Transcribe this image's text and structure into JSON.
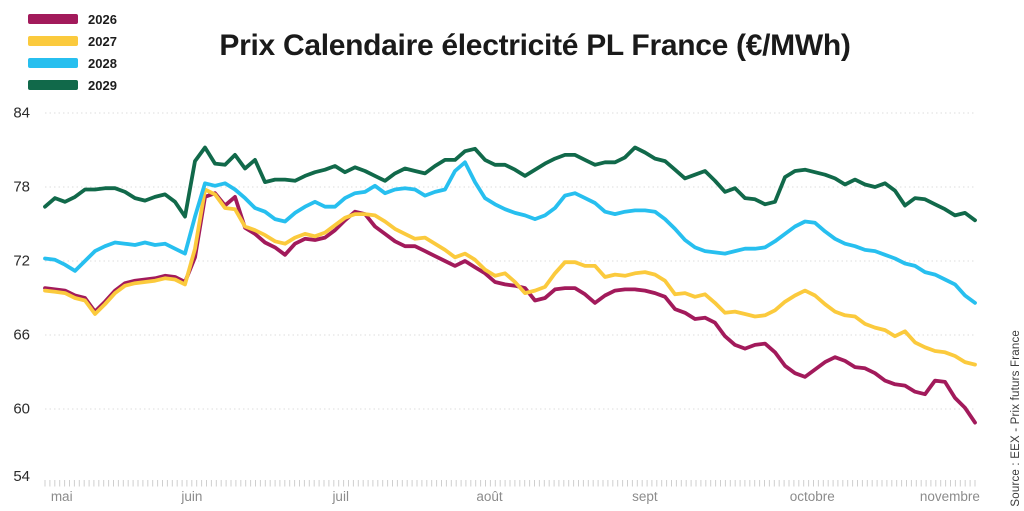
{
  "title": "Prix Calendaire électricité PL France (€/MWh)",
  "source": "Source : EEX - Prix futurs France",
  "legend": [
    {
      "label": "2026",
      "color": "#a21a5b"
    },
    {
      "label": "2027",
      "color": "#fbca3d"
    },
    {
      "label": "2028",
      "color": "#27bfef"
    },
    {
      "label": "2029",
      "color": "#11694a"
    }
  ],
  "colors": {
    "grid": "#dedede",
    "tick": "#cfcfcf",
    "y_label": "#2b2b2b",
    "x_label": "#8c8c8c",
    "title": "#1a1a1a"
  },
  "chart_data": {
    "type": "line",
    "title": "Prix Calendaire électricité PL France (€/MWh)",
    "ylabel": "€/MWh",
    "ylim": [
      54,
      84
    ],
    "y_ticks": [
      84,
      78,
      72,
      66,
      60,
      54
    ],
    "grid": "dotted-horizontal",
    "legend_position": "top-left",
    "x_months": [
      {
        "label": "mai",
        "f": 0.018
      },
      {
        "label": "juin",
        "f": 0.158
      },
      {
        "label": "juil",
        "f": 0.318
      },
      {
        "label": "août",
        "f": 0.478
      },
      {
        "label": "sept",
        "f": 0.645
      },
      {
        "label": "octobre",
        "f": 0.825
      },
      {
        "label": "novembre",
        "f": 0.973
      }
    ],
    "minor_tick_count": 190,
    "series": [
      {
        "name": "2026",
        "color": "#a21a5b",
        "values": [
          69.8,
          69.7,
          69.6,
          69.2,
          69.0,
          67.9,
          68.7,
          69.6,
          70.2,
          70.4,
          70.5,
          70.6,
          70.8,
          70.7,
          70.3,
          72.3,
          77.2,
          77.5,
          76.5,
          77.2,
          74.7,
          74.2,
          73.5,
          73.1,
          72.5,
          73.4,
          73.8,
          73.7,
          73.9,
          74.5,
          75.3,
          76.0,
          75.8,
          74.8,
          74.2,
          73.6,
          73.2,
          73.2,
          72.8,
          72.4,
          72.0,
          71.6,
          72.0,
          71.5,
          71.0,
          70.3,
          70.1,
          70.0,
          69.8,
          68.8,
          69.0,
          69.7,
          69.8,
          69.8,
          69.3,
          68.6,
          69.2,
          69.6,
          69.7,
          69.7,
          69.6,
          69.4,
          69.1,
          68.1,
          67.8,
          67.3,
          67.4,
          67.0,
          65.9,
          65.2,
          64.9,
          65.2,
          65.3,
          64.6,
          63.5,
          62.9,
          62.6,
          63.2,
          63.8,
          64.2,
          63.9,
          63.4,
          63.3,
          62.9,
          62.3,
          62.0,
          61.9,
          61.4,
          61.2,
          62.3,
          62.2,
          60.9,
          60.1,
          58.9
        ]
      },
      {
        "name": "2027",
        "color": "#fbca3d",
        "values": [
          69.6,
          69.5,
          69.4,
          69.0,
          68.8,
          67.7,
          68.5,
          69.4,
          70.0,
          70.2,
          70.3,
          70.4,
          70.6,
          70.5,
          70.1,
          73.0,
          77.8,
          77.4,
          76.3,
          76.2,
          74.8,
          74.5,
          74.1,
          73.6,
          73.4,
          73.9,
          74.2,
          74.0,
          74.3,
          74.9,
          75.5,
          75.8,
          75.8,
          75.7,
          75.2,
          74.6,
          74.2,
          73.8,
          73.9,
          73.4,
          72.9,
          72.3,
          72.6,
          72.1,
          71.3,
          70.8,
          71.0,
          70.3,
          69.4,
          69.6,
          69.9,
          71.0,
          71.9,
          71.9,
          71.6,
          71.6,
          70.7,
          70.9,
          70.8,
          71.0,
          71.1,
          70.9,
          70.4,
          69.3,
          69.4,
          69.1,
          69.3,
          68.6,
          67.8,
          67.9,
          67.7,
          67.5,
          67.6,
          68.0,
          68.7,
          69.2,
          69.6,
          69.2,
          68.5,
          67.9,
          67.6,
          67.5,
          66.9,
          66.6,
          66.4,
          65.9,
          66.3,
          65.4,
          65.0,
          64.7,
          64.6,
          64.3,
          63.8,
          63.6
        ]
      },
      {
        "name": "2028",
        "color": "#27bfef",
        "values": [
          72.2,
          72.1,
          71.7,
          71.2,
          72.0,
          72.8,
          73.2,
          73.5,
          73.4,
          73.3,
          73.5,
          73.3,
          73.4,
          73.0,
          72.6,
          75.6,
          78.3,
          78.1,
          78.3,
          77.8,
          77.1,
          76.3,
          76.0,
          75.4,
          75.2,
          75.9,
          76.4,
          76.8,
          76.4,
          76.4,
          77.1,
          77.5,
          77.6,
          78.1,
          77.5,
          77.8,
          77.9,
          77.8,
          77.3,
          77.6,
          77.8,
          79.3,
          80.0,
          78.4,
          77.1,
          76.6,
          76.2,
          75.9,
          75.7,
          75.4,
          75.7,
          76.3,
          77.3,
          77.5,
          77.1,
          76.7,
          76.0,
          75.8,
          76.0,
          76.1,
          76.1,
          76.0,
          75.4,
          74.6,
          73.7,
          73.1,
          72.8,
          72.7,
          72.6,
          72.8,
          73.0,
          73.0,
          73.1,
          73.6,
          74.2,
          74.8,
          75.2,
          75.1,
          74.4,
          73.8,
          73.4,
          73.2,
          72.9,
          72.8,
          72.5,
          72.2,
          71.8,
          71.6,
          71.1,
          70.9,
          70.5,
          70.1,
          69.2,
          68.6
        ]
      },
      {
        "name": "2029",
        "color": "#11694a",
        "values": [
          76.4,
          77.1,
          76.8,
          77.2,
          77.8,
          77.8,
          77.9,
          77.9,
          77.6,
          77.1,
          76.9,
          77.2,
          77.4,
          76.8,
          75.6,
          80.1,
          81.2,
          79.9,
          79.8,
          80.6,
          79.5,
          80.2,
          78.4,
          78.6,
          78.6,
          78.5,
          78.9,
          79.2,
          79.4,
          79.7,
          79.2,
          79.6,
          79.3,
          78.9,
          78.5,
          79.1,
          79.5,
          79.3,
          79.1,
          79.7,
          80.2,
          80.2,
          80.9,
          81.1,
          80.2,
          79.8,
          79.8,
          79.4,
          78.9,
          79.4,
          79.9,
          80.3,
          80.6,
          80.6,
          80.2,
          79.8,
          80.0,
          80.0,
          80.4,
          81.2,
          80.8,
          80.3,
          80.1,
          79.4,
          78.7,
          79.0,
          79.3,
          78.5,
          77.6,
          77.9,
          77.1,
          77.0,
          76.6,
          76.8,
          78.8,
          79.3,
          79.4,
          79.2,
          79.0,
          78.7,
          78.2,
          78.6,
          78.2,
          78.0,
          78.3,
          77.7,
          76.5,
          77.1,
          77.0,
          76.6,
          76.2,
          75.7,
          75.9,
          75.3
        ]
      }
    ]
  }
}
